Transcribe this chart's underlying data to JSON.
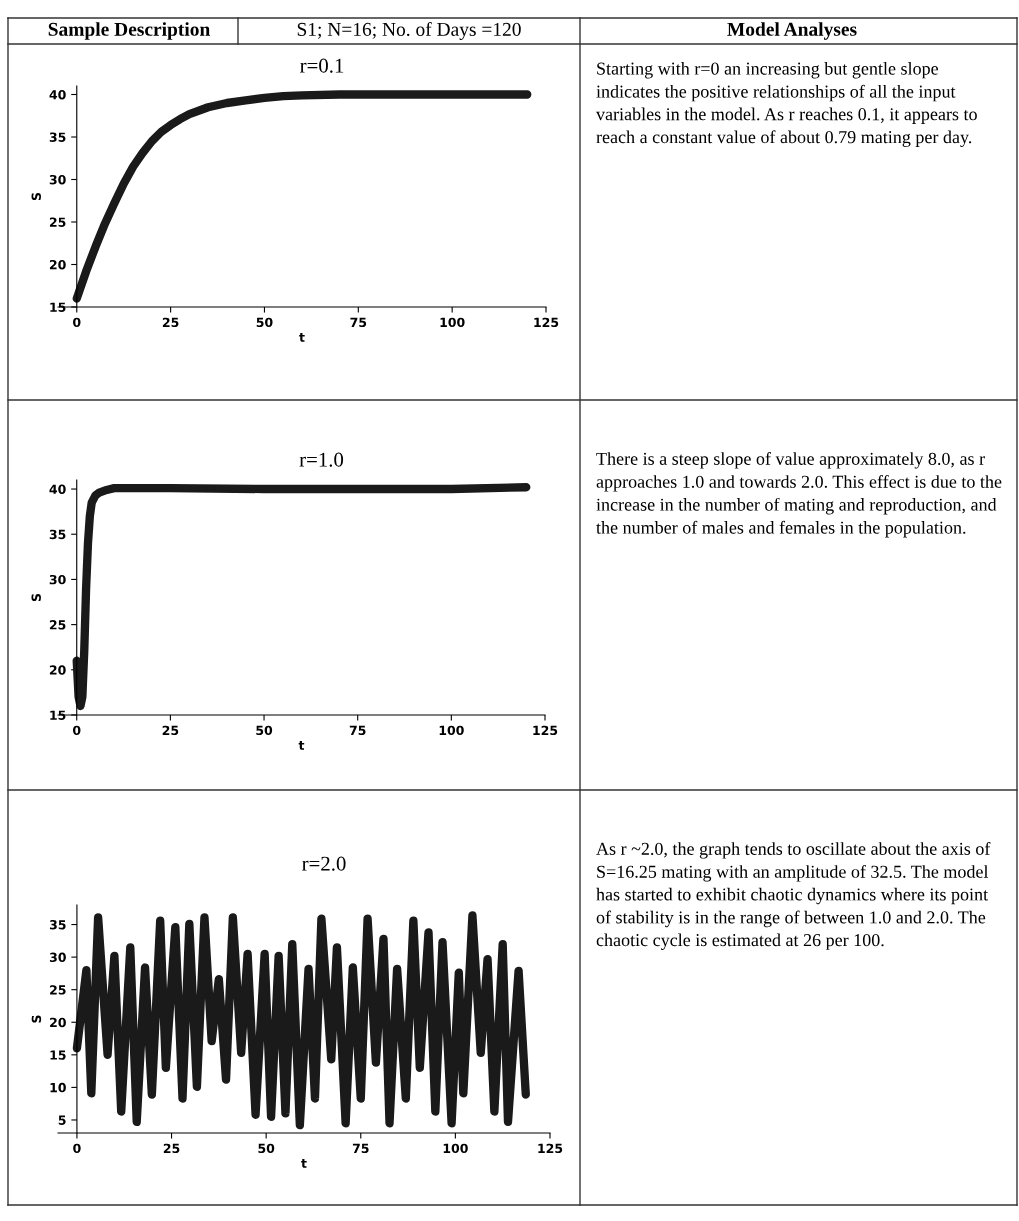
{
  "chart_data": [
    {
      "type": "other",
      "annotations": [
        "Sample Description",
        "S1; N=16; No. of Days =120",
        "Model Analyses"
      ]
    },
    {
      "type": "line",
      "title": "r=0.1",
      "xlabel": "t",
      "ylabel": "S",
      "color": "#1a1a1a",
      "x": [
        0,
        2.5,
        5,
        7.5,
        10,
        12.5,
        15,
        17.5,
        20,
        22.5,
        25,
        27.5,
        30,
        35,
        40,
        45,
        50,
        55,
        60,
        70,
        80,
        90,
        100,
        110,
        120
      ],
      "values": [
        16,
        19.2,
        22.1,
        24.8,
        27.2,
        29.5,
        31.5,
        33.1,
        34.5,
        35.6,
        36.4,
        37.1,
        37.7,
        38.5,
        39,
        39.3,
        39.6,
        39.8,
        39.9,
        40,
        40,
        40,
        40,
        40,
        40
      ],
      "xlim": [
        -5,
        125
      ],
      "ylim": [
        15,
        41
      ],
      "xticks": [
        0,
        25,
        50,
        75,
        100,
        125
      ],
      "yticks": [
        15,
        20,
        25,
        30,
        35,
        40
      ]
    },
    {
      "type": "other",
      "annotations": [
        "Starting with r=0 an increasing but gentle slope indicates the positive relationships of all the input variables in the model. As r reaches 0.1, it appears to reach a constant value of about 0.79 mating per day."
      ]
    },
    {
      "type": "line",
      "title": "r=1.0",
      "xlabel": "t",
      "ylabel": "S",
      "color": "#1a1a1a",
      "x": [
        0,
        0.5,
        1,
        1.5,
        2,
        2.5,
        3,
        3.5,
        4,
        5,
        6,
        8,
        10,
        15,
        25,
        50,
        75,
        100,
        120
      ],
      "values": [
        21,
        17,
        16,
        17,
        22,
        29,
        34,
        37,
        38.5,
        39.3,
        39.6,
        39.9,
        40.1,
        40.1,
        40.1,
        40,
        40,
        40,
        40.2
      ],
      "xlim": [
        -5,
        125
      ],
      "ylim": [
        15,
        41
      ],
      "xticks": [
        0,
        25,
        50,
        75,
        100,
        125
      ],
      "yticks": [
        15,
        20,
        25,
        30,
        35,
        40
      ]
    },
    {
      "type": "other",
      "annotations": [
        "There is a steep slope of value approximately 8.0, as r approaches 1.0 and towards 2.0. This effect is due to the increase in the number of mating and reproduction, and the number of males and females in the population."
      ]
    },
    {
      "type": "line",
      "title": "r=2.0",
      "xlabel": "t",
      "ylabel": "S",
      "color": "#1a1a1a",
      "x": [
        0,
        2.5,
        3.8,
        5.6,
        8.1,
        9.9,
        11.7,
        14.1,
        15.8,
        18,
        19.8,
        22,
        23.5,
        26,
        27.9,
        29.7,
        31.7,
        33.7,
        35.6,
        37.5,
        39.4,
        41.2,
        43.4,
        45.1,
        47.2,
        49.6,
        51.3,
        53.3,
        55.1,
        56.9,
        58.9,
        61.2,
        62.9,
        64.6,
        67.2,
        68.7,
        71,
        72.9,
        75,
        76.8,
        79,
        81,
        82.6,
        84.6,
        86.9,
        88.9,
        90.6,
        92.9,
        94.7,
        96.6,
        99,
        100.9,
        102.1,
        104.5,
        106.7,
        108.5,
        110.3,
        112.5,
        113.9,
        116.7,
        118.6
      ],
      "values": [
        16,
        28,
        9.1,
        36.1,
        15,
        30.2,
        6.3,
        31.5,
        4.7,
        28.4,
        8.9,
        35.6,
        13,
        34.6,
        8.3,
        35.1,
        10.1,
        36.1,
        17.1,
        26.6,
        11.2,
        36.1,
        15.3,
        30.5,
        5.8,
        30.5,
        5.5,
        30.2,
        6,
        32,
        4.2,
        28.2,
        8.3,
        35.9,
        14.3,
        31.5,
        4.5,
        28.4,
        8.3,
        35.9,
        13.8,
        32.8,
        4.5,
        28.2,
        8.3,
        35.6,
        13,
        33.8,
        6.3,
        32.3,
        4.5,
        27.6,
        9.1,
        36.4,
        15.3,
        29.7,
        6.3,
        32,
        4.7,
        27.9,
        8.9
      ],
      "xlim": [
        -5,
        125
      ],
      "ylim": [
        3,
        38
      ],
      "xticks": [
        0,
        25,
        50,
        75,
        100,
        125
      ],
      "yticks": [
        5,
        10,
        15,
        20,
        25,
        30,
        35
      ]
    },
    {
      "type": "other",
      "annotations": [
        "As r ~2.0, the graph tends to oscillate about the axis of S=16.25 mating with an amplitude of 32.5. The model has started to exhibit chaotic dynamics where its point of stability is in the range of between 1.0 and 2.0. The chaotic cycle is estimated at 26 per 100."
      ]
    }
  ]
}
